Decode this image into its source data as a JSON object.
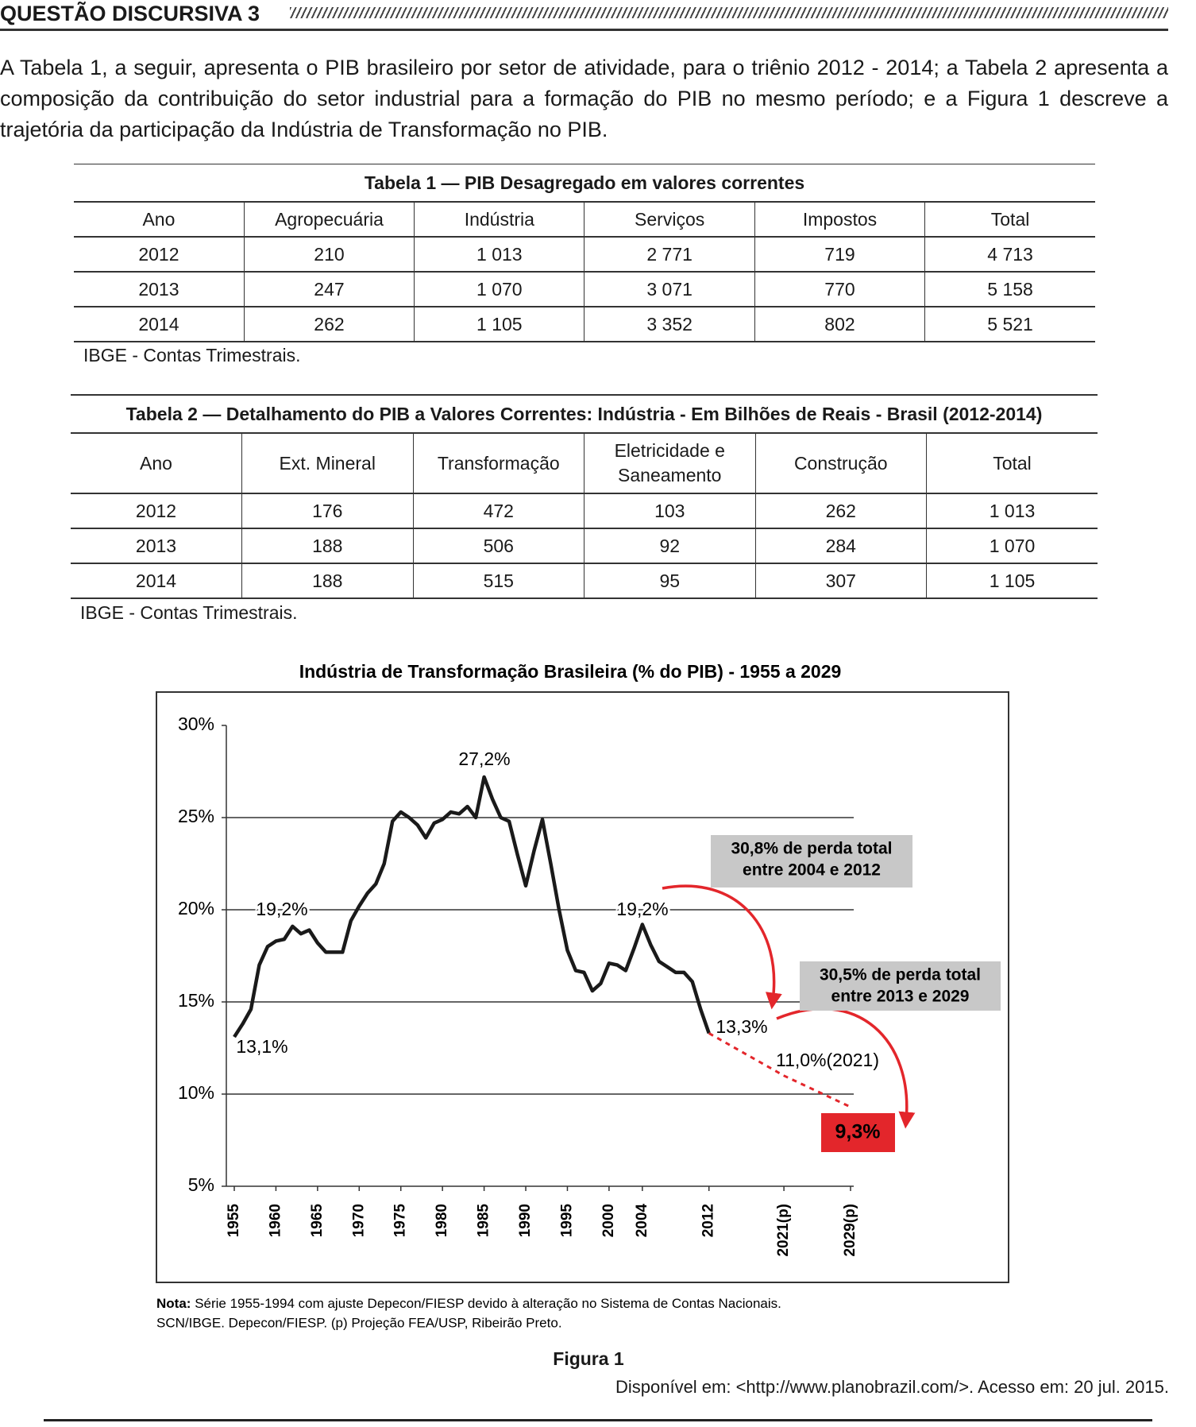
{
  "header": {
    "title": "QUESTÃO DISCURSIVA 3"
  },
  "intro": "A Tabela 1, a seguir, apresenta o PIB brasileiro por setor de atividade, para o triênio 2012 - 2014; a Tabela 2 apresenta a composição da contribuição do setor industrial para a formação do PIB no mesmo período; e a Figura 1 descreve a trajetória da participação da Indústria de Transformação no PIB.",
  "table1": {
    "title": "Tabela 1 — PIB Desagregado em valores correntes",
    "columns": [
      "Ano",
      "Agropecuária",
      "Indústria",
      "Serviços",
      "Impostos",
      "Total"
    ],
    "rows": [
      [
        "2012",
        "210",
        "1 013",
        "2 771",
        "719",
        "4 713"
      ],
      [
        "2013",
        "247",
        "1 070",
        "3 071",
        "770",
        "5 158"
      ],
      [
        "2014",
        "262",
        "1 105",
        "3 352",
        "802",
        "5 521"
      ]
    ],
    "source": "IBGE - Contas Trimestrais."
  },
  "table2": {
    "title": "Tabela 2 — Detalhamento do PIB a Valores Correntes: Indústria - Em Bilhões de Reais - Brasil (2012-2014)",
    "columns": [
      "Ano",
      "Ext. Mineral",
      "Transformação",
      "Eletricidade e Saneamento",
      "Construção",
      "Total"
    ],
    "rows": [
      [
        "2012",
        "176",
        "472",
        "103",
        "262",
        "1 013"
      ],
      [
        "2013",
        "188",
        "506",
        "92",
        "284",
        "1 070"
      ],
      [
        "2014",
        "188",
        "515",
        "95",
        "307",
        "1 105"
      ]
    ],
    "source": "IBGE - Contas Trimestrais."
  },
  "chart_data": {
    "type": "line",
    "title": "Indústria de Transformação Brasileira (% do PIB) - 1955 a 2029",
    "x": [
      1955,
      1956,
      1957,
      1958,
      1959,
      1960,
      1961,
      1962,
      1963,
      1964,
      1965,
      1966,
      1967,
      1968,
      1969,
      1970,
      1971,
      1972,
      1973,
      1974,
      1975,
      1976,
      1977,
      1978,
      1979,
      1980,
      1981,
      1982,
      1983,
      1984,
      1985,
      1986,
      1987,
      1988,
      1989,
      1990,
      1991,
      1992,
      1993,
      1994,
      1995,
      1996,
      1997,
      1998,
      1999,
      2000,
      2001,
      2002,
      2003,
      2004,
      2005,
      2006,
      2007,
      2008,
      2009,
      2010,
      2011,
      2012,
      2021,
      2029
    ],
    "xlim": [
      1955,
      2029
    ],
    "xticks": [
      1955,
      1960,
      1965,
      1970,
      1975,
      1980,
      1985,
      1990,
      1995,
      2000,
      2004,
      2012,
      {
        "value": 2021,
        "label": "2021(p)"
      },
      {
        "value": 2029,
        "label": "2029(p)"
      }
    ],
    "ylim": [
      5,
      30
    ],
    "yticks": [
      {
        "value": 5,
        "label": "5%"
      },
      {
        "value": 10,
        "label": "10%"
      },
      {
        "value": 15,
        "label": "15%"
      },
      {
        "value": 20,
        "label": "20%"
      },
      {
        "value": 25,
        "label": "25%"
      },
      {
        "value": 30,
        "label": "30%"
      }
    ],
    "grid": true,
    "series": [
      {
        "color": "#1a1a1a",
        "style": "solid",
        "values": [
          13.1,
          13.8,
          14.6,
          17.0,
          18.0,
          18.3,
          18.4,
          19.1,
          18.7,
          18.9,
          18.2,
          17.7,
          17.7,
          17.7,
          19.4,
          20.2,
          20.9,
          21.4,
          22.5,
          24.8,
          25.3,
          25.0,
          24.6,
          23.9,
          24.7,
          24.9,
          25.3,
          25.2,
          25.6,
          25.0,
          27.2,
          26.0,
          25.0,
          24.8,
          23.0,
          21.3,
          23.2,
          24.9,
          22.5,
          20.0,
          17.8,
          16.7,
          16.6,
          15.6,
          16.0,
          17.1,
          17.0,
          16.7,
          17.9,
          19.2,
          18.1,
          17.2,
          16.9,
          16.6,
          16.6,
          16.1,
          14.6,
          13.3,
          null,
          null
        ]
      },
      {
        "color": "#e3262b",
        "style": "dashed",
        "values": [
          null,
          null,
          null,
          null,
          null,
          null,
          null,
          null,
          null,
          null,
          null,
          null,
          null,
          null,
          null,
          null,
          null,
          null,
          null,
          null,
          null,
          null,
          null,
          null,
          null,
          null,
          null,
          null,
          null,
          null,
          null,
          null,
          null,
          null,
          null,
          null,
          null,
          null,
          null,
          null,
          null,
          null,
          null,
          null,
          null,
          null,
          null,
          null,
          null,
          null,
          null,
          null,
          null,
          null,
          null,
          null,
          null,
          13.3,
          11.0,
          9.3
        ]
      }
    ],
    "annotations": [
      "27,2%",
      "19,2%",
      "19,2%",
      "13,1%",
      "13,3%",
      "11,0%(2021)",
      "9,3%"
    ],
    "boxes": [
      [
        "30,8% de perda total",
        "entre 2004 e 2012"
      ],
      [
        "30,5% de perda total",
        "entre 2013 e 2029"
      ]
    ],
    "note": {
      "label": "Nota:",
      "lines": [
        "Série 1955-1994 com ajuste Depecon/FIESP devido à alteração no Sistema de Contas Nacionais.",
        "SCN/IBGE. Depecon/FIESP. (p) Projeção FEA/USP, Ribeirão Preto."
      ]
    }
  },
  "figure": {
    "caption": "Figura 1",
    "source": "Disponível em: <http://www.planobrazil.com/>. Acesso em: 20 jul. 2015."
  }
}
